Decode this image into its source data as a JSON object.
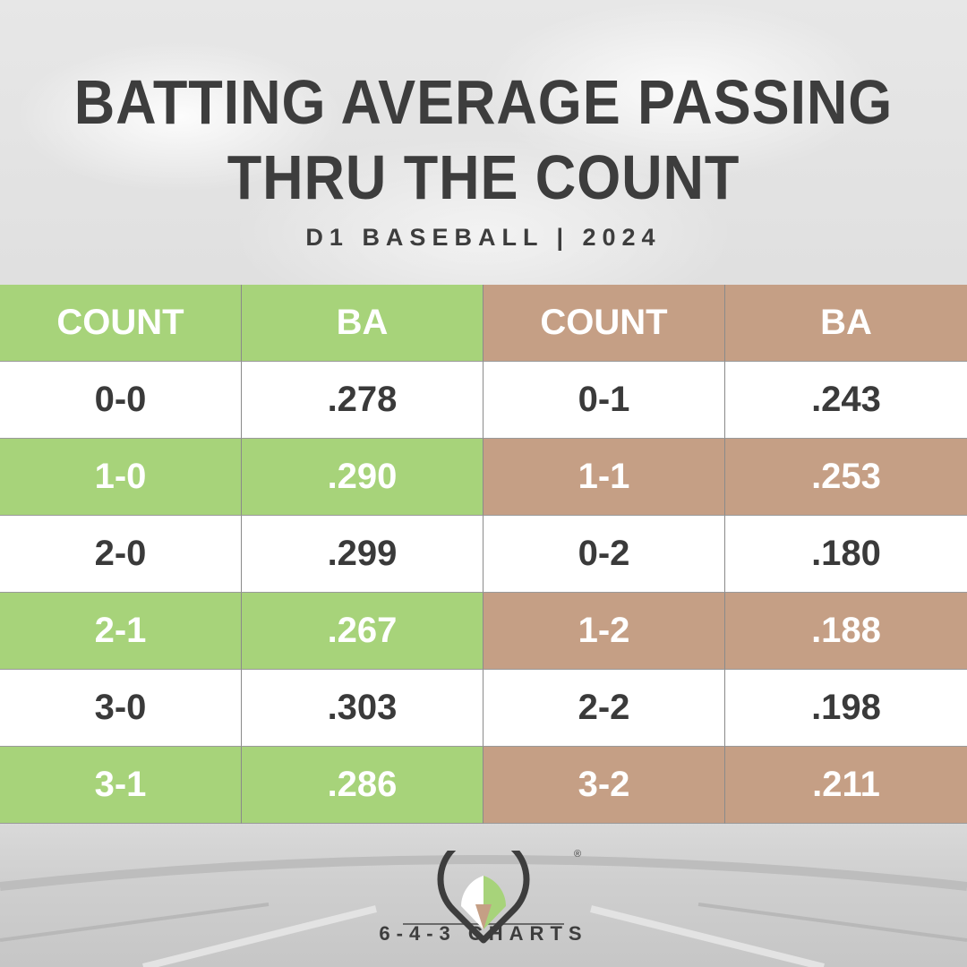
{
  "header": {
    "title_line1": "BATTING AVERAGE PASSING",
    "title_line2": "THRU THE COUNT",
    "subtitle": "D1 BASEBALL | 2024"
  },
  "colors": {
    "hitter_counts": "#a7d37a",
    "pitcher_counts": "#c59f85",
    "white_row": "#ffffff",
    "text_dark": "#3a3a3a"
  },
  "chart_data": {
    "type": "table",
    "columns": [
      "COUNT",
      "BA",
      "COUNT",
      "BA"
    ],
    "rows": [
      [
        "0-0",
        ".278",
        "0-1",
        ".243"
      ],
      [
        "1-0",
        ".290",
        "1-1",
        ".253"
      ],
      [
        "2-0",
        ".299",
        "0-2",
        ".180"
      ],
      [
        "2-1",
        ".267",
        "1-2",
        ".188"
      ],
      [
        "3-0",
        ".303",
        "2-2",
        ".198"
      ],
      [
        "3-1",
        ".286",
        "3-2",
        ".211"
      ]
    ]
  },
  "logo": {
    "text": "6-4-3 CHARTS",
    "registered_mark": "®",
    "icon": "baseball-diamond-icon"
  }
}
